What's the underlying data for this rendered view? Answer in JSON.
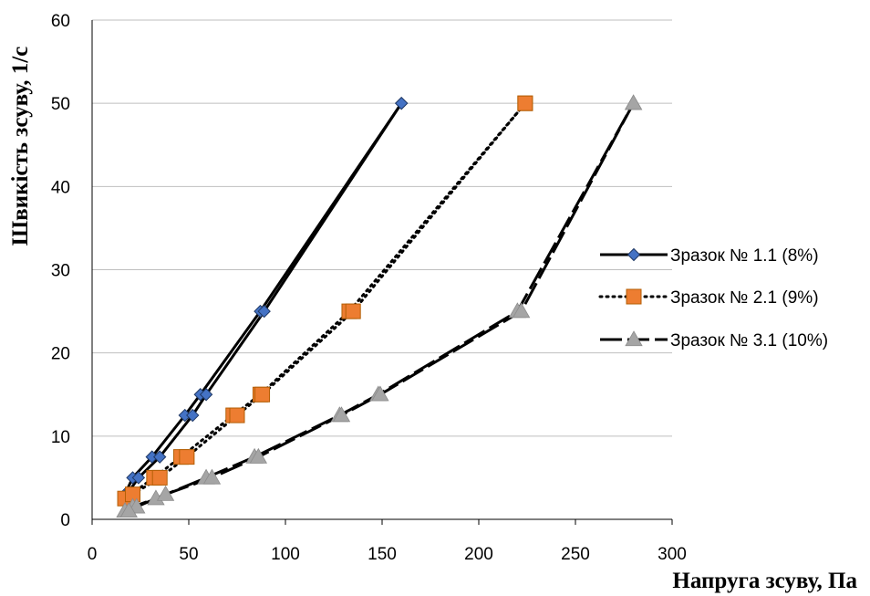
{
  "chart_data": {
    "type": "scatter",
    "xlabel": "Напруга зсуву, Па",
    "ylabel": "Швикість зсуву, 1/с",
    "xlim": [
      0,
      300
    ],
    "ylim": [
      0,
      60
    ],
    "x_ticks": [
      "0",
      "50",
      "100",
      "150",
      "200",
      "250",
      "300"
    ],
    "y_ticks": [
      "0",
      "10",
      "20",
      "30",
      "40",
      "50",
      "60"
    ],
    "grid": "horizontal",
    "legend_position": "right",
    "series": [
      {
        "name": "Зразок № 1.1 (8%)",
        "color": "#4472C4",
        "line": "solid",
        "marker": "diamond",
        "up": [
          [
            17,
            3
          ],
          [
            21,
            5
          ],
          [
            31,
            7.5
          ],
          [
            48,
            12.5
          ],
          [
            56,
            15
          ],
          [
            87,
            25
          ],
          [
            160,
            50
          ]
        ],
        "down": [
          [
            160,
            50
          ],
          [
            89,
            25
          ],
          [
            59,
            15
          ],
          [
            52,
            12.5
          ],
          [
            35,
            7.5
          ],
          [
            24,
            5
          ],
          [
            18,
            3
          ]
        ]
      },
      {
        "name": "Зразок № 2.1 (9%)",
        "color": "#ED7D31",
        "line": "dotted",
        "marker": "square",
        "up": [
          [
            17,
            2.5
          ],
          [
            32,
            5
          ],
          [
            46,
            7.5
          ],
          [
            73,
            12.5
          ],
          [
            87,
            15
          ],
          [
            133,
            25
          ],
          [
            224,
            50
          ]
        ],
        "down": [
          [
            224,
            50
          ],
          [
            135,
            25
          ],
          [
            88,
            15
          ],
          [
            75,
            12.5
          ],
          [
            49,
            7.5
          ],
          [
            35,
            5
          ],
          [
            21,
            3
          ]
        ]
      },
      {
        "name": "Зразок № 3.1 (10%)",
        "color": "#A5A5A5",
        "line": "dashed",
        "marker": "triangle",
        "up": [
          [
            17,
            1
          ],
          [
            21,
            1.5
          ],
          [
            33,
            2.5
          ],
          [
            59,
            5
          ],
          [
            84,
            7.5
          ],
          [
            128,
            12.5
          ],
          [
            148,
            15
          ],
          [
            220,
            25
          ],
          [
            280,
            50
          ]
        ],
        "down": [
          [
            280,
            50
          ],
          [
            222,
            25
          ],
          [
            149,
            15
          ],
          [
            129,
            12.5
          ],
          [
            86,
            7.5
          ],
          [
            62,
            5
          ],
          [
            38,
            3
          ],
          [
            23,
            1.5
          ],
          [
            19,
            1
          ]
        ]
      }
    ]
  }
}
